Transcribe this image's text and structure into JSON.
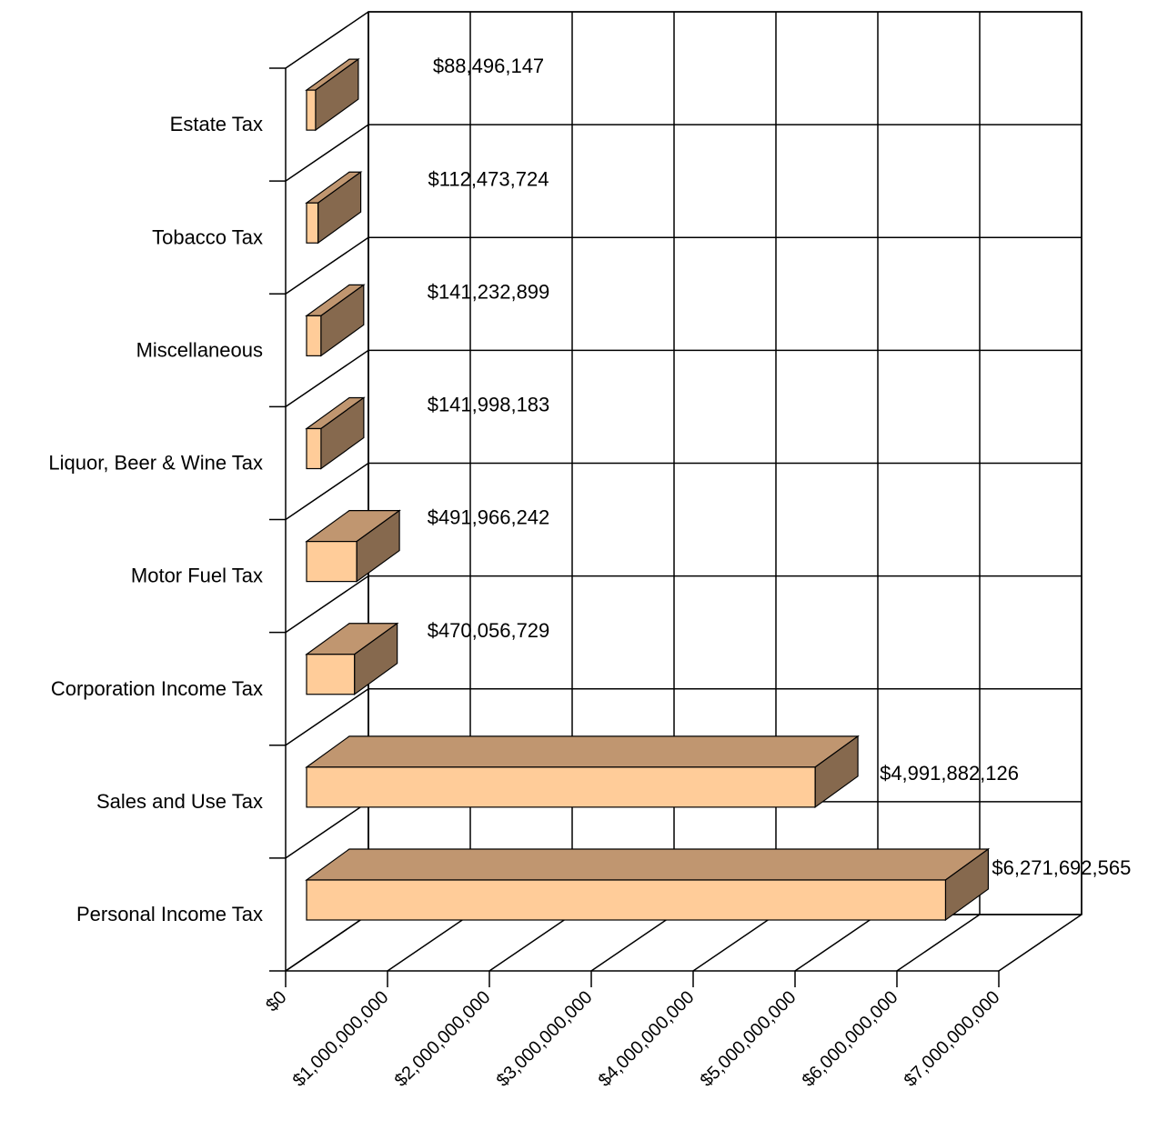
{
  "chart_data": {
    "type": "bar",
    "orientation": "horizontal",
    "three_d": true,
    "categories": [
      "Personal Income Tax",
      "Sales and Use Tax",
      "Corporation Income Tax",
      "Motor Fuel Tax",
      "Liquor, Beer & Wine Tax",
      "Miscellaneous",
      "Tobacco Tax",
      "Estate Tax"
    ],
    "values": [
      6271692565,
      4991882126,
      470056729,
      491966242,
      141998183,
      141232899,
      112473724,
      88496147
    ],
    "value_labels": [
      "$6,271,692,565",
      "$4,991,882,126",
      "$470,056,729",
      "$491,966,242",
      "$141,998,183",
      "$141,232,899",
      "$112,473,724",
      "$88,496,147"
    ],
    "x_ticks": [
      "$0",
      "$1,000,000,000",
      "$2,000,000,000",
      "$3,000,000,000",
      "$4,000,000,000",
      "$5,000,000,000",
      "$6,000,000,000",
      "$7,000,000,000"
    ],
    "xlim": [
      0,
      7000000000
    ],
    "grid": true,
    "title": "",
    "xlabel": "",
    "ylabel": "",
    "colors": {
      "bar_front": "#FFCC99",
      "bar_top": "#C09670",
      "bar_side": "#86694E",
      "grid": "#000000"
    }
  }
}
